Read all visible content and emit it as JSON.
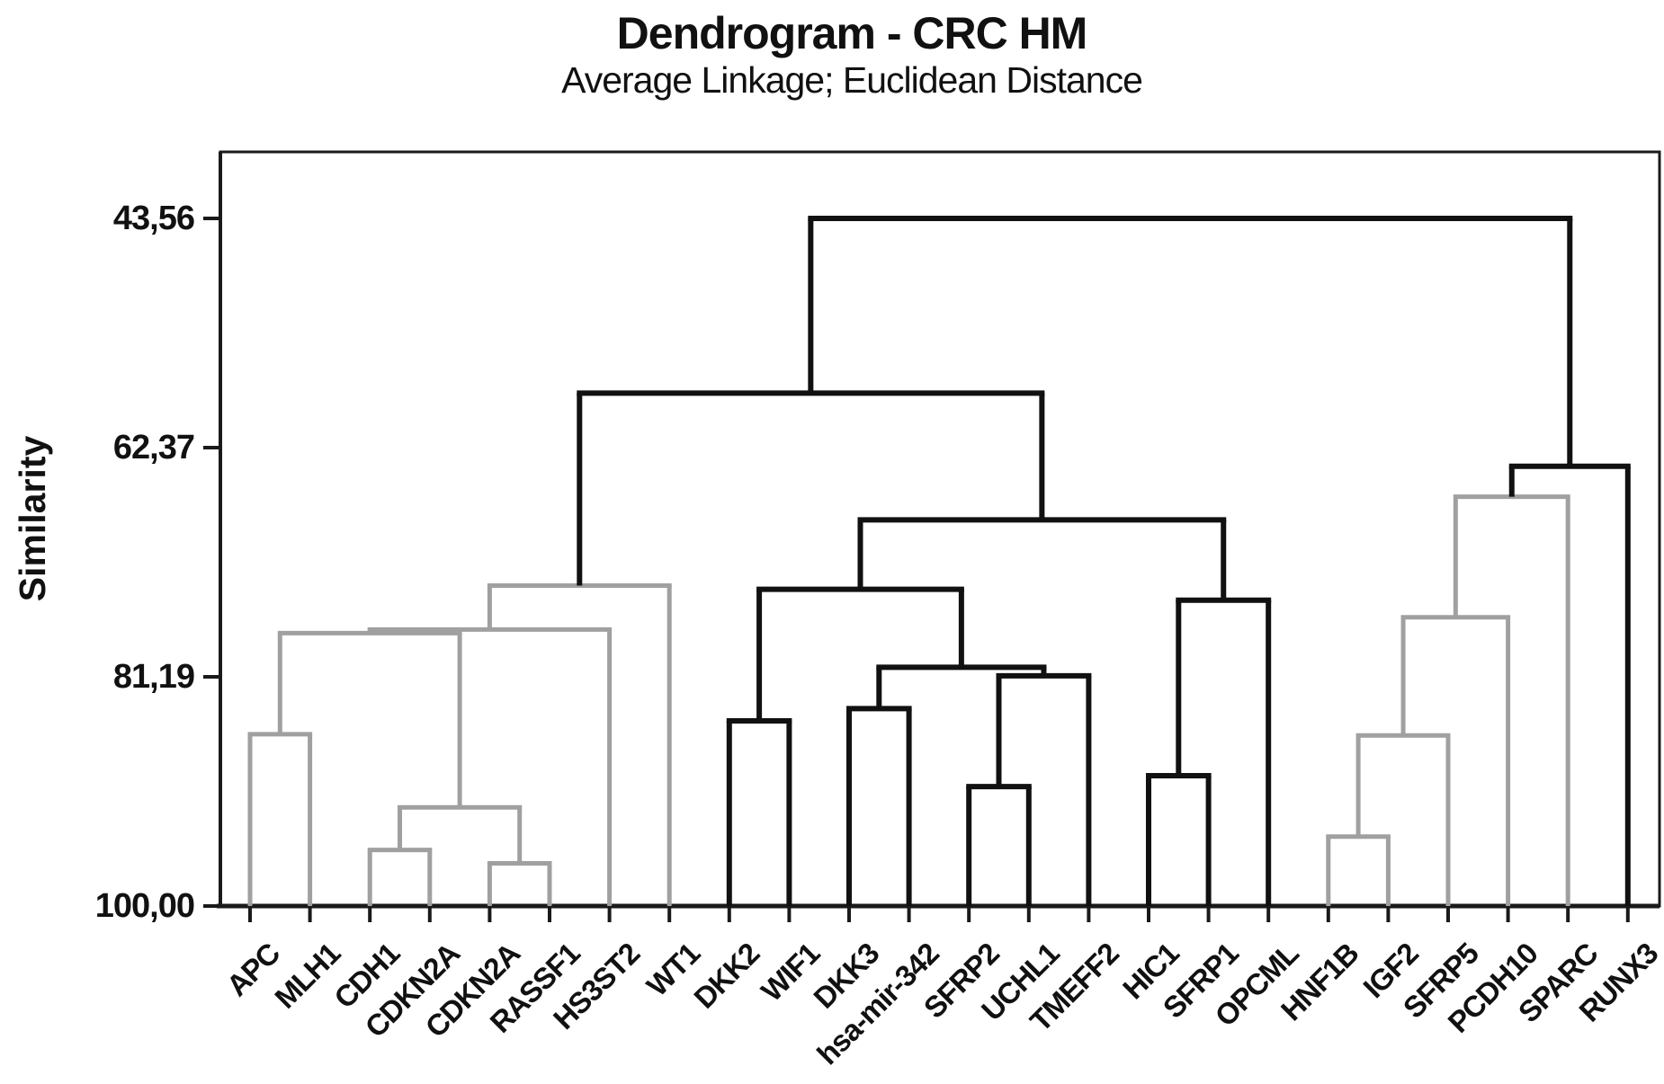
{
  "title": "Dendrogram - CRC HM",
  "subtitle": "Average Linkage; Euclidean Distance",
  "y_axis": {
    "label": "Similarity",
    "tick_labels": [
      "43,56",
      "62,37",
      "81,19",
      "100,00"
    ],
    "tick_values": [
      43.56,
      62.37,
      81.19,
      100.0
    ]
  },
  "colors": {
    "gray": "#a0a0a0",
    "black": "#111111",
    "frame": "#1a1a1a",
    "text": "#111111"
  },
  "chart_data": {
    "type": "dendrogram",
    "orientation": "top-down",
    "title": "Dendrogram - CRC HM",
    "subtitle": "Average Linkage; Euclidean Distance",
    "ylabel": "Similarity",
    "y_range": [
      43.56,
      100.0
    ],
    "y_tick_values": [
      43.56,
      62.37,
      81.19,
      100.0
    ],
    "leaves": [
      "APC",
      "MLH1",
      "CDH1",
      "CDKN2A",
      "CDKN2A",
      "RASSF1",
      "HS3ST2",
      "WT1",
      "DKK2",
      "WIF1",
      "DKK3",
      "hsa-mir-342",
      "SFRP2",
      "UCHL1",
      "TMEFF2",
      "HIC1",
      "SFRP1",
      "OPCML",
      "HNF1B",
      "IGF2",
      "SFRP5",
      "PCDH10",
      "SPARC",
      "RUNX3"
    ],
    "merges": [
      {
        "id": "M1",
        "a": "L0",
        "b": "L1",
        "similarity": 85.9,
        "color": "gray"
      },
      {
        "id": "M2",
        "a": "L2",
        "b": "L3",
        "similarity": 95.4,
        "color": "gray"
      },
      {
        "id": "M3",
        "a": "L4",
        "b": "L5",
        "similarity": 96.5,
        "color": "gray"
      },
      {
        "id": "M4",
        "a": "M2",
        "b": "M3",
        "similarity": 91.9,
        "color": "gray"
      },
      {
        "id": "M5",
        "a": "M1",
        "b": "M4",
        "similarity": 77.6,
        "color": "gray"
      },
      {
        "id": "M6",
        "a": "M5",
        "b": "L6",
        "similarity": 77.3,
        "color": "gray"
      },
      {
        "id": "M7",
        "a": "M6",
        "b": "L7",
        "similarity": 73.7,
        "color": "gray"
      },
      {
        "id": "M8",
        "a": "L8",
        "b": "L9",
        "similarity": 84.8,
        "color": "black"
      },
      {
        "id": "M9",
        "a": "L10",
        "b": "L11",
        "similarity": 83.8,
        "color": "black"
      },
      {
        "id": "M10",
        "a": "L12",
        "b": "L13",
        "similarity": 90.2,
        "color": "black"
      },
      {
        "id": "M11",
        "a": "M10",
        "b": "L14",
        "similarity": 81.1,
        "color": "black"
      },
      {
        "id": "M12",
        "a": "M9",
        "b": "M11",
        "similarity": 80.4,
        "color": "black"
      },
      {
        "id": "M13",
        "a": "L15",
        "b": "L16",
        "similarity": 89.3,
        "color": "black"
      },
      {
        "id": "M14",
        "a": "M13",
        "b": "L17",
        "similarity": 74.9,
        "color": "black"
      },
      {
        "id": "M15",
        "a": "M8",
        "b": "M12",
        "similarity": 74.0,
        "color": "black"
      },
      {
        "id": "M16",
        "a": "M15",
        "b": "M14",
        "similarity": 68.3,
        "color": "black"
      },
      {
        "id": "M17",
        "a": "M7",
        "b": "M16",
        "similarity": 57.9,
        "color": "black"
      },
      {
        "id": "M18",
        "a": "L18",
        "b": "L19",
        "similarity": 94.3,
        "color": "gray"
      },
      {
        "id": "M19",
        "a": "M18",
        "b": "L20",
        "similarity": 86.0,
        "color": "gray"
      },
      {
        "id": "M20",
        "a": "M19",
        "b": "L21",
        "similarity": 76.3,
        "color": "gray"
      },
      {
        "id": "M21",
        "a": "M20",
        "b": "L22",
        "similarity": 66.4,
        "color": "gray"
      },
      {
        "id": "M22",
        "a": "M21",
        "b": "L23",
        "similarity": 63.9,
        "color": "black"
      },
      {
        "id": "M23",
        "a": "M17",
        "b": "M22",
        "similarity": 43.56,
        "color": "black"
      }
    ]
  }
}
